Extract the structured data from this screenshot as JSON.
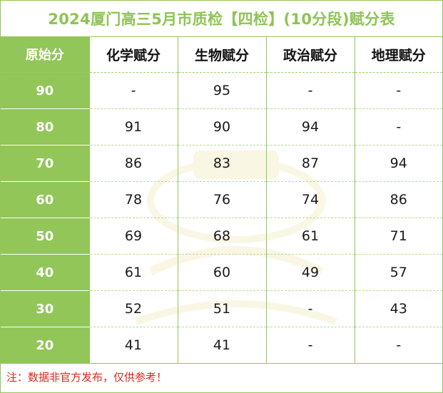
{
  "title": "2024厦门高三5月市质检【四检】(10分段)赋分表",
  "columns": [
    "原始分",
    "化学赋分",
    "生物赋分",
    "政治赋分",
    "地理赋分"
  ],
  "rows": [
    {
      "raw": "90",
      "vals": [
        "-",
        "95",
        "-",
        "-"
      ]
    },
    {
      "raw": "80",
      "vals": [
        "91",
        "90",
        "94",
        "-"
      ]
    },
    {
      "raw": "70",
      "vals": [
        "86",
        "83",
        "87",
        "94"
      ]
    },
    {
      "raw": "60",
      "vals": [
        "78",
        "76",
        "74",
        "86"
      ]
    },
    {
      "raw": "50",
      "vals": [
        "69",
        "68",
        "61",
        "71"
      ]
    },
    {
      "raw": "40",
      "vals": [
        "61",
        "60",
        "49",
        "57"
      ]
    },
    {
      "raw": "30",
      "vals": [
        "52",
        "51",
        "-",
        "43"
      ]
    },
    {
      "raw": "20",
      "vals": [
        "41",
        "41",
        "-",
        "-"
      ]
    }
  ],
  "note": "注：数据非官方发布，仅供参考！",
  "colors": {
    "accent": "#92c659",
    "title": "#8dc454",
    "note": "#e0261b"
  }
}
